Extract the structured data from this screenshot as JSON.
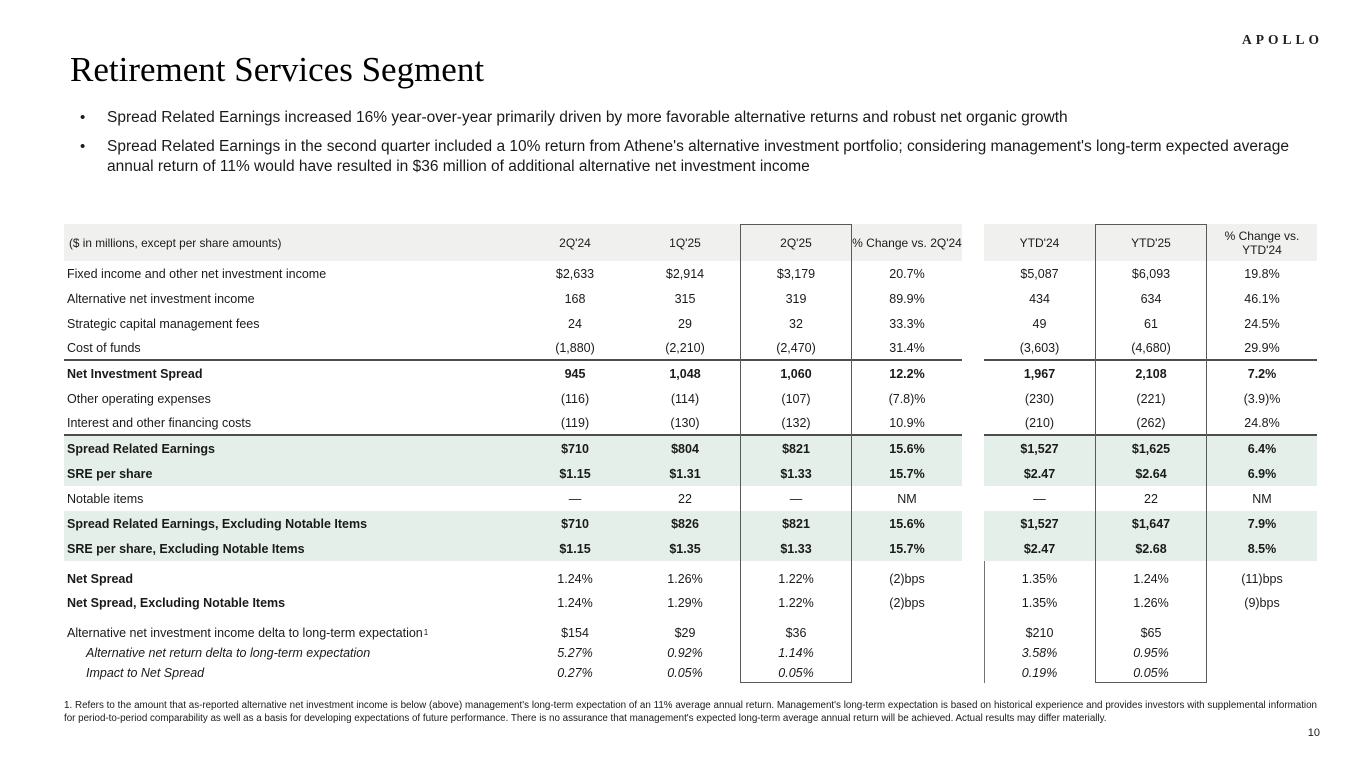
{
  "logo": "APOLLO",
  "title": "Retirement Services Segment",
  "page_number": "10",
  "bullets": [
    "Spread Related Earnings increased 16% year-over-year primarily driven by more favorable alternative returns and robust net organic growth",
    "Spread Related Earnings in the second quarter included a 10% return from Athene's alternative investment portfolio; considering management's long-term expected average annual return of 11% would have resulted in $36 million of additional alternative net investment income"
  ],
  "colors": {
    "header-bg": "#f0f0ee",
    "green": "#e4efe9",
    "rule": "#4d4d4d",
    "box": "#595959"
  },
  "table": {
    "label_header": "($ in millions, except per share amounts)",
    "col_headers": [
      "2Q'24",
      "1Q'25",
      "2Q'25",
      "% Change vs. 2Q'24",
      "YTD'24",
      "YTD'25",
      "% Change vs. YTD'24"
    ],
    "sections": [
      {
        "rule_below": true,
        "gap_above": 0,
        "rows": [
          {
            "label": "Fixed income and other net investment income",
            "style": "normal",
            "values": [
              "$2,633",
              "$2,914",
              "$3,179",
              "20.7%",
              "$5,087",
              "$6,093",
              "19.8%"
            ]
          },
          {
            "label": "Alternative net investment income",
            "style": "normal",
            "values": [
              "168",
              "315",
              "319",
              "89.9%",
              "434",
              "634",
              "46.1%"
            ]
          },
          {
            "label": "Strategic capital management fees",
            "style": "normal",
            "values": [
              "24",
              "29",
              "32",
              "33.3%",
              "49",
              "61",
              "24.5%"
            ]
          },
          {
            "label": "Cost of funds",
            "style": "normal",
            "values": [
              "(1,880)",
              "(2,210)",
              "(2,470)",
              "31.4%",
              "(3,603)",
              "(4,680)",
              "29.9%"
            ]
          }
        ]
      },
      {
        "rule_below": true,
        "gap_above": 0,
        "rows": [
          {
            "label": "Net Investment Spread",
            "style": "bold",
            "values": [
              "945",
              "1,048",
              "1,060",
              "12.2%",
              "1,967",
              "2,108",
              "7.2%"
            ]
          },
          {
            "label": "Other operating expenses",
            "style": "normal",
            "values": [
              "(116)",
              "(114)",
              "(107)",
              "(7.8)%",
              "(230)",
              "(221)",
              "(3.9)%"
            ]
          },
          {
            "label": "Interest and other financing costs",
            "style": "normal",
            "values": [
              "(119)",
              "(130)",
              "(132)",
              "10.9%",
              "(210)",
              "(262)",
              "24.8%"
            ]
          }
        ]
      },
      {
        "rule_below": false,
        "gap_above": 0,
        "rows": [
          {
            "label": "Spread Related Earnings",
            "style": "green",
            "values": [
              "$710",
              "$804",
              "$821",
              "15.6%",
              "$1,527",
              "$1,625",
              "6.4%"
            ]
          },
          {
            "label": "SRE per share",
            "style": "green",
            "values": [
              "$1.15",
              "$1.31",
              "$1.33",
              "15.7%",
              "$2.47",
              "$2.64",
              "6.9%"
            ]
          },
          {
            "label": "Notable items",
            "style": "normal",
            "values": [
              "—",
              "22",
              "—",
              "NM",
              "—",
              "22",
              "NM"
            ]
          },
          {
            "label": "Spread Related Earnings, Excluding Notable Items",
            "style": "green",
            "values": [
              "$710",
              "$826",
              "$821",
              "15.6%",
              "$1,527",
              "$1,647",
              "7.9%"
            ]
          },
          {
            "label": "SRE per share, Excluding Notable Items",
            "style": "green",
            "values": [
              "$1.15",
              "$1.35",
              "$1.33",
              "15.7%",
              "$2.47",
              "$2.68",
              "8.5%"
            ]
          }
        ]
      },
      {
        "rule_below": false,
        "gap_above": 6,
        "rows": [
          {
            "label": "Net Spread",
            "style": "labelbold",
            "values": [
              "1.24%",
              "1.26%",
              "1.22%",
              "(2)bps",
              "1.35%",
              "1.24%",
              "(11)bps"
            ]
          },
          {
            "label": "Net Spread, Excluding Notable Items",
            "style": "labelbold",
            "values": [
              "1.24%",
              "1.29%",
              "1.22%",
              "(2)bps",
              "1.35%",
              "1.26%",
              "(9)bps"
            ]
          }
        ]
      },
      {
        "rule_below": false,
        "gap_above": 8,
        "rows": [
          {
            "label": "Alternative net investment income delta to long-term expectation",
            "sup": "1",
            "style": "normal",
            "values": [
              "$154",
              "$29",
              "$36",
              "",
              "$210",
              "$65",
              ""
            ]
          },
          {
            "label": "Alternative net return delta to long-term expectation",
            "style": "italic",
            "values": [
              "5.27%",
              "0.92%",
              "1.14%",
              "",
              "3.58%",
              "0.95%",
              ""
            ]
          },
          {
            "label": "Impact to Net Spread",
            "style": "italic",
            "values": [
              "0.27%",
              "0.05%",
              "0.05%",
              "",
              "0.19%",
              "0.05%",
              ""
            ]
          }
        ]
      }
    ]
  },
  "footnote": "1. Refers to the amount that as-reported alternative net investment income is below (above) management's long-term expectation of an 11% average annual return. Management's long-term expectation is based on historical experience and provides investors with supplemental information for period-to-period comparability as well as a basis for developing expectations of future performance. There is no assurance that management's expected long-term average annual return will be achieved. Actual results may differ materially."
}
